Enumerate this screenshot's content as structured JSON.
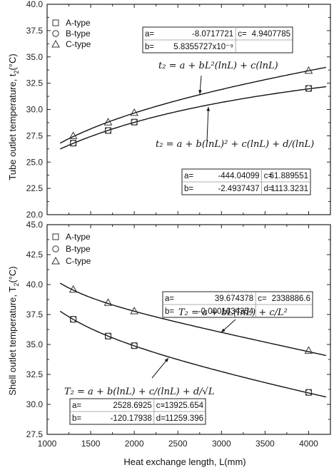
{
  "chart_data": [
    {
      "type": "scatter",
      "xlabel": "",
      "ylabel": "Tube outlet temperature, t2(°C)",
      "ylabel_main": "Tube outlet temperature, t",
      "ylabel_sub": "2",
      "ylabel_unit": "(°C)",
      "xlim": [
        1000,
        4250
      ],
      "ylim": [
        20.0,
        40.0
      ],
      "yticks": [
        "20.0",
        "22.5",
        "25.0",
        "27.5",
        "30.0",
        "32.5",
        "35.0",
        "37.5",
        "40.0"
      ],
      "series": [
        {
          "name": "A-type",
          "marker": "square",
          "x": [
            1300,
            1700,
            2000,
            4000
          ],
          "y": [
            26.8,
            28.0,
            28.8,
            32.0
          ]
        },
        {
          "name": "B-type",
          "marker": "circle",
          "x": [
            1300,
            1700,
            2000,
            4000
          ],
          "y": [
            26.8,
            28.0,
            28.8,
            32.0
          ]
        },
        {
          "name": "C-type",
          "marker": "triangle",
          "x": [
            1300,
            1700,
            2000,
            4000
          ],
          "y": [
            27.5,
            28.8,
            29.7,
            33.7
          ]
        }
      ],
      "fits": [
        {
          "a": -8.0717721,
          "b": 5.8355727e-09,
          "c": 4.9407785
        },
        {
          "a": -444.04099,
          "b": -2.4937437,
          "c": 61.889551,
          "d": 1113.3231
        }
      ],
      "tables": [
        {
          "rows": [
            [
              {
                "label": "a=",
                "value": "-8.0717721"
              },
              {
                "label": "c=",
                "value": "4.9407785"
              }
            ],
            [
              {
                "label": "b=",
                "value": "5.8355727x10⁻⁹"
              },
              {
                "label": "",
                "value": ""
              }
            ]
          ]
        },
        {
          "rows": [
            [
              {
                "label": "a=",
                "value": "-444.04099"
              },
              {
                "label": "c=",
                "value": "61.889551"
              }
            ],
            [
              {
                "label": "b=",
                "value": "-2.4937437"
              },
              {
                "label": "d=",
                "value": "1113.3231"
              }
            ]
          ]
        }
      ]
    },
    {
      "type": "scatter",
      "xlabel": "Heat exchange length, L(mm)",
      "ylabel": "Shell outlet temperature, T2(°C)",
      "ylabel_main": "Shell outlet temperature, T",
      "ylabel_sub": "2",
      "ylabel_unit": "(°C)",
      "xlim": [
        1000,
        4250
      ],
      "ylim": [
        27.5,
        45.0
      ],
      "xticks": [
        "1000",
        "1500",
        "2000",
        "2500",
        "3000",
        "3500",
        "4000"
      ],
      "yticks": [
        "27.5",
        "30.0",
        "32.5",
        "35.0",
        "37.5",
        "40.0",
        "42.5",
        "45.0"
      ],
      "series": [
        {
          "name": "A-type",
          "marker": "square",
          "x": [
            1300,
            1700,
            2000,
            4000
          ],
          "y": [
            37.1,
            35.7,
            34.9,
            31.0
          ]
        },
        {
          "name": "B-type",
          "marker": "circle",
          "x": [
            1300,
            1700,
            2000,
            4000
          ],
          "y": [
            37.1,
            35.7,
            34.9,
            31.0
          ]
        },
        {
          "name": "C-type",
          "marker": "triangle",
          "x": [
            1300,
            1700,
            2000,
            4000
          ],
          "y": [
            39.6,
            38.5,
            37.8,
            34.5
          ]
        }
      ],
      "fits": [
        {
          "a": 39.674378,
          "b": -0.0001634354,
          "c": 2338886.6
        },
        {
          "a": 2528.6925,
          "b": -120.17938,
          "c": -13925.654,
          "d": 11259.396
        }
      ],
      "tables": [
        {
          "rows": [
            [
              {
                "label": "a=",
                "value": "39.674378"
              },
              {
                "label": "c=",
                "value": "2338886.6"
              }
            ],
            [
              {
                "label": "b=",
                "value": "-0.0001634354"
              },
              {
                "label": "",
                "value": ""
              }
            ]
          ]
        },
        {
          "rows": [
            [
              {
                "label": "a=",
                "value": "2528.6925"
              },
              {
                "label": "c=",
                "value": "-13925.654"
              }
            ],
            [
              {
                "label": "b=",
                "value": "-120.17938"
              },
              {
                "label": "d=",
                "value": "11259.396"
              }
            ]
          ]
        }
      ]
    }
  ],
  "equations": {
    "top_1": "t₂ = a + bL²(lnL) + c(lnL)",
    "top_2": "t₂ = a + b(lnL)² + c(lnL) + d/(lnL)",
    "bottom_1": "T₂ = a + bL(lnL) + c/L²",
    "bottom_2": "T₂ = a + b(lnL) + c/(lnL) + d/√L"
  }
}
